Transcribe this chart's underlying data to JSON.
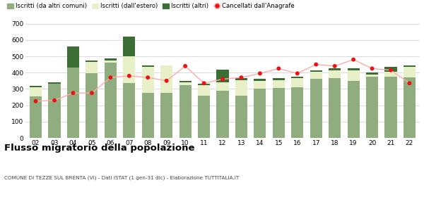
{
  "years": [
    "02",
    "03",
    "04",
    "05",
    "06",
    "07",
    "08",
    "09",
    "10",
    "11",
    "12",
    "13",
    "14",
    "15",
    "16",
    "17",
    "18",
    "19",
    "20",
    "21",
    "22"
  ],
  "iscritti_altri_comuni": [
    255,
    330,
    430,
    395,
    460,
    335,
    275,
    275,
    325,
    260,
    290,
    260,
    300,
    305,
    310,
    360,
    365,
    350,
    375,
    375,
    370
  ],
  "iscritti_estero": [
    55,
    0,
    0,
    70,
    15,
    165,
    160,
    170,
    15,
    65,
    50,
    95,
    50,
    50,
    55,
    45,
    50,
    65,
    15,
    30,
    65
  ],
  "iscritti_altri": [
    10,
    10,
    130,
    10,
    10,
    120,
    10,
    0,
    10,
    5,
    80,
    10,
    10,
    10,
    10,
    10,
    10,
    10,
    10,
    30,
    10
  ],
  "cancellati": [
    225,
    230,
    275,
    275,
    370,
    380,
    370,
    350,
    440,
    335,
    360,
    370,
    395,
    425,
    395,
    450,
    440,
    480,
    425,
    415,
    335
  ],
  "color_altri_comuni": "#8fad7f",
  "color_estero": "#e8f0c8",
  "color_altri": "#3a6e35",
  "color_cancellati": "#ee1111",
  "color_line": "#ffaaaa",
  "ylim": [
    0,
    700
  ],
  "yticks": [
    0,
    100,
    200,
    300,
    400,
    500,
    600,
    700
  ],
  "title": "Flusso migratorio della popolazione",
  "subtitle": "COMUNE DI TEZZE SUL BRENTA (VI) - Dati ISTAT (1 gen-31 dic) - Elaborazione TUTTITALIA.IT",
  "legend_labels": [
    "Iscritti (da altri comuni)",
    "Iscritti (dall'estero)",
    "Iscritti (altri)",
    "Cancellati dall'Anagrafe"
  ],
  "bg_color": "#ffffff",
  "grid_color": "#cccccc"
}
